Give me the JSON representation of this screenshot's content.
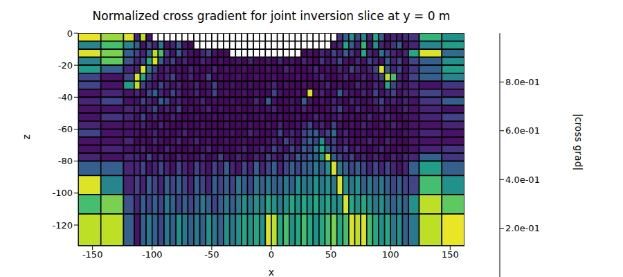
{
  "chart_data": {
    "type": "heatmap",
    "title": "Normalized cross gradient for joint inversion slice at y = 0 m",
    "x_label": "x",
    "y_label": "z",
    "xlim": [
      -162,
      162
    ],
    "xticks": [
      -150,
      -100,
      -50,
      0,
      50,
      100,
      150
    ],
    "ylim": [
      -133,
      0
    ],
    "yticks": [
      -120,
      -100,
      -80,
      -60,
      -40,
      -20,
      0
    ],
    "x_edges": [
      -162,
      -143,
      -124,
      -115,
      -110,
      -105,
      -100,
      -95,
      -90,
      -85,
      -80,
      -75,
      -70,
      -65,
      -60,
      -55,
      -50,
      -45,
      -40,
      -35,
      -30,
      -25,
      -20,
      -15,
      -10,
      -5,
      0,
      5,
      10,
      15,
      20,
      25,
      30,
      35,
      40,
      45,
      50,
      55,
      60,
      65,
      70,
      75,
      80,
      85,
      90,
      95,
      100,
      105,
      110,
      115,
      124,
      143,
      162
    ],
    "y_edges": [
      0,
      -5,
      -10,
      -15,
      -20,
      -25,
      -30,
      -35,
      -40,
      -45,
      -50,
      -55,
      -60,
      -65,
      -70,
      -75,
      -80,
      -89,
      -101,
      -113,
      -133
    ],
    "values": [
      [
        0.97,
        0.85,
        0.95,
        0.1,
        0.9,
        0.05,
        null,
        null,
        null,
        null,
        null,
        null,
        null,
        null,
        null,
        null,
        null,
        null,
        null,
        null,
        null,
        null,
        null,
        null,
        null,
        null,
        null,
        null,
        null,
        null,
        null,
        null,
        null,
        null,
        null,
        null,
        null,
        0.15,
        0.3,
        0.5,
        0.2,
        0.45,
        0.1,
        0.6,
        0.3,
        0.05,
        0.1,
        0.08,
        0.12,
        0.15,
        0.65,
        0.5
      ],
      [
        0.45,
        0.7,
        0.45,
        0.3,
        0.05,
        0.2,
        0.1,
        0.4,
        0.05,
        0.1,
        0.3,
        0.05,
        0.02,
        null,
        null,
        null,
        null,
        null,
        null,
        null,
        null,
        null,
        null,
        null,
        null,
        null,
        null,
        null,
        null,
        null,
        null,
        null,
        null,
        null,
        null,
        null,
        0.05,
        0.1,
        0.6,
        0.3,
        0.1,
        0.65,
        0.05,
        0.5,
        0.1,
        0.05,
        0.15,
        0.3,
        0.05,
        0.1,
        0.45,
        0.55
      ],
      [
        0.95,
        0.8,
        0.3,
        0.2,
        0.1,
        0.3,
        0.9,
        0.7,
        0.15,
        0.05,
        0.3,
        0.1,
        0.05,
        0.02,
        0.1,
        0.2,
        0.05,
        0.02,
        0.03,
        null,
        null,
        null,
        null,
        null,
        null,
        null,
        null,
        null,
        null,
        null,
        null,
        0.02,
        0.05,
        0.03,
        0.1,
        0.05,
        0.2,
        0.1,
        0.3,
        0.15,
        0.05,
        0.6,
        0.1,
        0.05,
        0.4,
        0.2,
        0.1,
        0.05,
        0.1,
        0.6,
        0.95,
        0.35
      ],
      [
        0.45,
        0.75,
        0.25,
        0.1,
        0.2,
        0.6,
        0.95,
        0.3,
        0.1,
        0.2,
        0.05,
        0.1,
        0.03,
        0.02,
        0.1,
        0.05,
        0.02,
        0.05,
        0.02,
        0.03,
        0.05,
        0.02,
        0.1,
        0.03,
        0.02,
        0.05,
        0.02,
        0.1,
        0.03,
        0.05,
        0.02,
        0.1,
        0.05,
        0.02,
        0.15,
        0.05,
        0.1,
        0.2,
        0.05,
        0.03,
        0.1,
        0.05,
        0.2,
        0.1,
        0.05,
        0.3,
        0.1,
        0.2,
        0.05,
        0.2,
        0.3,
        0.5
      ],
      [
        0.55,
        0.3,
        0.1,
        0.1,
        0.95,
        0.4,
        0.2,
        0.05,
        0.1,
        0.03,
        0.05,
        0.02,
        0.1,
        0.05,
        0.02,
        0.03,
        0.1,
        0.02,
        0.05,
        0.03,
        0.02,
        0.05,
        0.02,
        0.03,
        0.02,
        0.05,
        0.03,
        0.02,
        0.1,
        0.05,
        0.02,
        0.03,
        0.05,
        0.1,
        0.02,
        0.05,
        0.03,
        0.1,
        0.05,
        0.2,
        0.1,
        0.05,
        0.1,
        0.2,
        0.95,
        0.3,
        0.1,
        0.2,
        0.05,
        0.15,
        0.3,
        0.55
      ],
      [
        0.2,
        0.05,
        0.2,
        0.95,
        0.6,
        0.2,
        0.1,
        0.05,
        0.1,
        0.2,
        0.05,
        0.03,
        0.1,
        0.02,
        0.05,
        0.2,
        0.03,
        0.05,
        0.02,
        0.03,
        0.05,
        0.02,
        0.03,
        0.05,
        0.02,
        0.03,
        0.05,
        0.02,
        0.03,
        0.02,
        0.05,
        0.03,
        0.02,
        0.05,
        0.1,
        0.03,
        0.02,
        0.05,
        0.1,
        0.03,
        0.05,
        0.1,
        0.05,
        0.1,
        0.2,
        0.9,
        0.7,
        0.1,
        0.05,
        0.2,
        0.3,
        0.45
      ],
      [
        0.2,
        0.05,
        0.55,
        0.9,
        0.2,
        0.1,
        0.05,
        0.2,
        0.1,
        0.05,
        0.1,
        0.03,
        0.05,
        0.1,
        0.02,
        0.05,
        0.2,
        0.03,
        0.02,
        0.05,
        0.02,
        0.03,
        0.05,
        0.02,
        0.03,
        0.05,
        0.1,
        0.02,
        0.05,
        0.03,
        0.02,
        0.05,
        0.03,
        0.02,
        0.05,
        0.1,
        0.03,
        0.05,
        0.02,
        0.03,
        0.1,
        0.05,
        0.03,
        0.1,
        0.05,
        0.6,
        0.2,
        0.1,
        0.05,
        0.1,
        0.05,
        0.15
      ],
      [
        0.05,
        0.1,
        0.05,
        0.1,
        0.05,
        0.2,
        0.3,
        0.1,
        0.05,
        0.2,
        0.1,
        0.03,
        0.05,
        0.1,
        0.02,
        0.05,
        0.2,
        0.03,
        0.05,
        0.02,
        0.03,
        0.05,
        0.02,
        0.05,
        0.02,
        0.03,
        0.2,
        0.05,
        0.02,
        0.03,
        0.05,
        0.02,
        0.95,
        0.05,
        0.1,
        0.02,
        0.05,
        0.3,
        0.1,
        0.05,
        0.02,
        0.1,
        0.05,
        0.2,
        0.05,
        0.1,
        0.2,
        0.05,
        0.1,
        0.1,
        0.2,
        0.1
      ],
      [
        0.1,
        0.2,
        0.05,
        0.05,
        0.2,
        0.1,
        0.05,
        0.3,
        0.2,
        0.05,
        0.1,
        0.05,
        0.02,
        0.05,
        0.1,
        0.02,
        0.05,
        0.03,
        0.02,
        0.05,
        0.02,
        0.03,
        0.02,
        0.1,
        0.02,
        0.3,
        0.05,
        0.02,
        0.03,
        0.05,
        0.02,
        0.3,
        0.05,
        0.02,
        0.05,
        0.03,
        0.1,
        0.05,
        0.02,
        0.1,
        0.05,
        0.03,
        0.05,
        0.1,
        0.2,
        0.05,
        0.1,
        0.05,
        0.1,
        0.05,
        0.15,
        0.3
      ],
      [
        0.05,
        0.05,
        0.1,
        0.1,
        0.05,
        0.1,
        0.2,
        0.05,
        0.1,
        0.05,
        0.2,
        0.02,
        0.05,
        0.02,
        0.05,
        0.1,
        0.02,
        0.05,
        0.03,
        0.02,
        0.05,
        0.02,
        0.03,
        0.05,
        0.02,
        0.05,
        0.1,
        0.03,
        0.02,
        0.05,
        0.02,
        0.1,
        0.05,
        0.03,
        0.02,
        0.05,
        0.1,
        0.2,
        0.05,
        0.02,
        0.1,
        0.05,
        0.03,
        0.05,
        0.1,
        0.05,
        0.02,
        0.05,
        0.1,
        0.05,
        0.1,
        0.05
      ],
      [
        0.05,
        0.15,
        0.1,
        0.05,
        0.2,
        0.05,
        0.1,
        0.05,
        0.02,
        0.1,
        0.05,
        0.02,
        0.03,
        0.05,
        0.02,
        0.03,
        0.05,
        0.02,
        0.05,
        0.03,
        0.02,
        0.05,
        0.02,
        0.03,
        0.05,
        0.02,
        0.03,
        0.05,
        0.02,
        0.03,
        0.05,
        0.02,
        0.03,
        0.1,
        0.05,
        0.02,
        0.05,
        0.1,
        0.03,
        0.05,
        0.02,
        0.05,
        0.1,
        0.03,
        0.05,
        0.1,
        0.05,
        0.02,
        0.05,
        0.05,
        0.1,
        0.2
      ],
      [
        0.1,
        0.05,
        0.05,
        0.05,
        0.1,
        0.05,
        0.02,
        0.1,
        0.05,
        0.03,
        0.02,
        0.05,
        0.02,
        0.03,
        0.05,
        0.02,
        0.03,
        0.02,
        0.05,
        0.02,
        0.03,
        0.02,
        0.05,
        0.02,
        0.03,
        0.05,
        0.02,
        0.1,
        0.03,
        0.02,
        0.05,
        0.1,
        0.2,
        0.05,
        0.1,
        0.03,
        0.2,
        0.05,
        0.02,
        0.05,
        0.03,
        0.1,
        0.05,
        0.02,
        0.05,
        0.03,
        0.1,
        0.05,
        0.02,
        0.05,
        0.05,
        0.1
      ],
      [
        0.2,
        0.05,
        0.05,
        0.05,
        0.02,
        0.05,
        0.1,
        0.03,
        0.05,
        0.02,
        0.05,
        0.1,
        0.02,
        0.05,
        0.03,
        0.02,
        0.05,
        0.02,
        0.03,
        0.05,
        0.02,
        0.03,
        0.1,
        0.05,
        0.02,
        0.03,
        0.05,
        0.2,
        0.05,
        0.1,
        0.05,
        0.2,
        0.25,
        0.3,
        0.1,
        0.2,
        0.35,
        0.05,
        0.1,
        0.03,
        0.02,
        0.05,
        0.03,
        0.05,
        0.02,
        0.05,
        0.03,
        0.02,
        0.05,
        0.05,
        0.1,
        0.05
      ],
      [
        0.05,
        0.05,
        0.1,
        0.02,
        0.05,
        0.03,
        0.1,
        0.05,
        0.02,
        0.05,
        0.1,
        0.03,
        0.05,
        0.1,
        0.02,
        0.05,
        0.03,
        0.02,
        0.05,
        0.02,
        0.03,
        0.05,
        0.02,
        0.03,
        0.02,
        0.05,
        0.1,
        0.05,
        0.2,
        0.1,
        0.05,
        0.2,
        0.3,
        0.2,
        0.5,
        0.1,
        0.2,
        0.05,
        0.1,
        0.05,
        0.02,
        0.05,
        0.1,
        0.05,
        0.02,
        0.1,
        0.05,
        0.03,
        0.02,
        0.05,
        0.05,
        0.05
      ],
      [
        0.05,
        0.1,
        0.05,
        0.05,
        0.1,
        0.03,
        0.05,
        0.02,
        0.1,
        0.05,
        0.03,
        0.02,
        0.05,
        0.02,
        0.05,
        0.1,
        0.02,
        0.05,
        0.03,
        0.02,
        0.05,
        0.1,
        0.03,
        0.05,
        0.1,
        0.05,
        0.2,
        0.1,
        0.05,
        0.2,
        0.1,
        0.3,
        0.2,
        0.4,
        0.6,
        0.3,
        0.2,
        0.1,
        0.2,
        0.05,
        0.1,
        0.05,
        0.02,
        0.05,
        0.1,
        0.05,
        0.02,
        0.05,
        0.03,
        0.05,
        0.1,
        0.15
      ],
      [
        0.1,
        0.05,
        0.1,
        0.1,
        0.05,
        0.2,
        0.05,
        0.1,
        0.05,
        0.02,
        0.1,
        0.05,
        0.03,
        0.05,
        0.1,
        0.02,
        0.05,
        0.2,
        0.05,
        0.03,
        0.1,
        0.05,
        0.02,
        0.1,
        0.05,
        0.2,
        0.1,
        0.05,
        0.2,
        0.1,
        0.3,
        0.2,
        0.3,
        0.3,
        0.5,
        0.9,
        0.3,
        0.2,
        0.1,
        0.2,
        0.05,
        0.1,
        0.05,
        0.1,
        0.05,
        0.02,
        0.1,
        0.05,
        0.1,
        0.1,
        0.3,
        0.15
      ],
      [
        0.3,
        0.3,
        0.1,
        0.1,
        0.2,
        0.05,
        0.1,
        0.2,
        0.1,
        0.05,
        0.2,
        0.1,
        0.05,
        0.2,
        0.1,
        0.05,
        0.2,
        0.1,
        0.3,
        0.1,
        0.05,
        0.2,
        0.1,
        0.3,
        0.1,
        0.2,
        0.3,
        0.1,
        0.2,
        0.3,
        0.2,
        0.3,
        0.3,
        0.4,
        0.3,
        0.5,
        0.95,
        0.4,
        0.3,
        0.2,
        0.3,
        0.2,
        0.1,
        0.2,
        0.1,
        0.2,
        0.1,
        0.05,
        0.1,
        0.3,
        0.55,
        0.3
      ],
      [
        0.95,
        0.45,
        0.1,
        0.2,
        0.1,
        0.3,
        0.2,
        0.1,
        0.3,
        0.2,
        0.3,
        0.2,
        0.1,
        0.3,
        0.2,
        0.1,
        0.3,
        0.2,
        0.3,
        0.2,
        0.4,
        0.3,
        0.2,
        0.4,
        0.3,
        0.4,
        0.3,
        0.3,
        0.4,
        0.3,
        0.5,
        0.4,
        0.4,
        0.5,
        0.4,
        0.5,
        0.4,
        0.95,
        0.5,
        0.4,
        0.5,
        0.3,
        0.4,
        0.3,
        0.4,
        0.3,
        0.2,
        0.3,
        0.2,
        0.2,
        0.7,
        0.5
      ],
      [
        0.7,
        0.8,
        0.25,
        0.1,
        0.3,
        0.2,
        0.3,
        0.2,
        0.4,
        0.3,
        0.2,
        0.3,
        0.2,
        0.3,
        0.4,
        0.3,
        0.2,
        0.3,
        0.4,
        0.3,
        0.4,
        0.5,
        0.4,
        0.5,
        0.4,
        0.6,
        0.5,
        0.4,
        0.5,
        0.6,
        0.5,
        0.6,
        0.5,
        0.6,
        0.5,
        0.6,
        0.5,
        0.5,
        0.95,
        0.6,
        0.5,
        0.6,
        0.5,
        0.4,
        0.5,
        0.4,
        0.3,
        0.4,
        0.3,
        0.5,
        0.9,
        0.75
      ],
      [
        0.9,
        0.9,
        0.3,
        0.05,
        0.3,
        0.4,
        0.3,
        0.2,
        0.4,
        0.3,
        0.5,
        0.4,
        0.3,
        0.4,
        0.3,
        0.5,
        0.4,
        0.3,
        0.5,
        0.4,
        0.5,
        0.6,
        0.5,
        0.6,
        0.5,
        0.95,
        0.9,
        0.6,
        0.7,
        0.5,
        0.6,
        0.7,
        0.6,
        0.5,
        0.6,
        0.7,
        0.8,
        0.6,
        0.7,
        0.95,
        0.9,
        0.95,
        0.7,
        0.6,
        0.5,
        0.6,
        0.4,
        0.5,
        0.3,
        0.4,
        0.9,
        0.97
      ]
    ],
    "colorbar": {
      "label": "|cross grad|",
      "lim": [
        0,
        1
      ],
      "ticks": [
        {
          "value": 0.2,
          "label": "2.0e-01"
        },
        {
          "value": 0.4,
          "label": "4.0e-01"
        },
        {
          "value": 0.6,
          "label": "6.0e-01"
        },
        {
          "value": 0.8,
          "label": "8.0e-01"
        }
      ]
    }
  }
}
